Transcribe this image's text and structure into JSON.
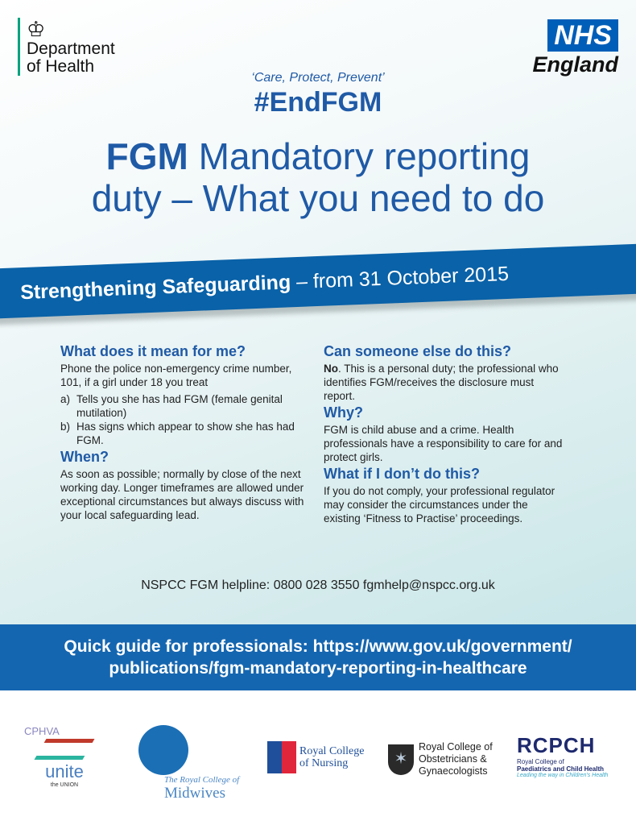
{
  "header": {
    "department": [
      "Department",
      "of Health"
    ],
    "nhs_box": "NHS",
    "nhs_region": "England",
    "motto": "‘Care, Protect, Prevent’",
    "hashtag": "#EndFGM"
  },
  "title": {
    "bold": "FGM",
    "rest_line1": " Mandatory reporting",
    "line2": "duty – What you need to do"
  },
  "banner": {
    "bold": "Strengthening Safeguarding",
    "rest": " – from 31 October 2015"
  },
  "left": {
    "h1": "What does it mean for me?",
    "p1": "Phone the police non-emergency crime number, 101, if a girl under 18 you treat",
    "items": [
      {
        "m": "a)",
        "t": "Tells you she has had FGM (female genital mutilation)"
      },
      {
        "m": "b)",
        "t": "Has signs which appear to show she has had FGM."
      }
    ],
    "h2": "When?",
    "p2": "As soon as possible; normally by close of the next working day. Longer timeframes are allowed under exceptional circumstances but always discuss with your local safeguarding lead."
  },
  "right": {
    "h1": "Can someone else do this?",
    "p1_bold": "No",
    "p1": ". This is a personal duty; the professional who identifies FGM/receives the disclosure must report.",
    "h2": "Why?",
    "p2": "FGM is child abuse and a crime. Health professionals have a responsibility to care for and protect girls.",
    "h3": "What if I don’t do this?",
    "p3": "If you do not comply, your professional regulator may consider the circumstances under the existing ‘Fitness to Practise’ proceedings."
  },
  "helpline": "NSPCC FGM helpline: 0800 028 3550 fgmhelp@nspcc.org.uk",
  "guide": {
    "line1": "Quick guide for professionals: https://www.gov.uk/government/",
    "line2": "publications/fgm-mandatory-reporting-in-healthcare"
  },
  "logos": {
    "unite": {
      "a": "CPHVA",
      "b": "unite",
      "c": "the UNION"
    },
    "rcm": {
      "a": "The Royal College of",
      "b": "Midwives"
    },
    "rcn": {
      "a": "Royal College",
      "b": "of Nursing"
    },
    "rcog": {
      "a": "Royal College of",
      "b": "Obstetricians &",
      "c": "Gynaecologists"
    },
    "rcpch": {
      "a": "RCPCH",
      "b": "Royal College of",
      "c": "Paediatrics and Child Health",
      "d": "Leading the way in Children's Health"
    }
  },
  "colors": {
    "brand_blue": "#1f5aa6",
    "band_blue": "#0a62a8",
    "nhs_blue": "#005eb8"
  }
}
